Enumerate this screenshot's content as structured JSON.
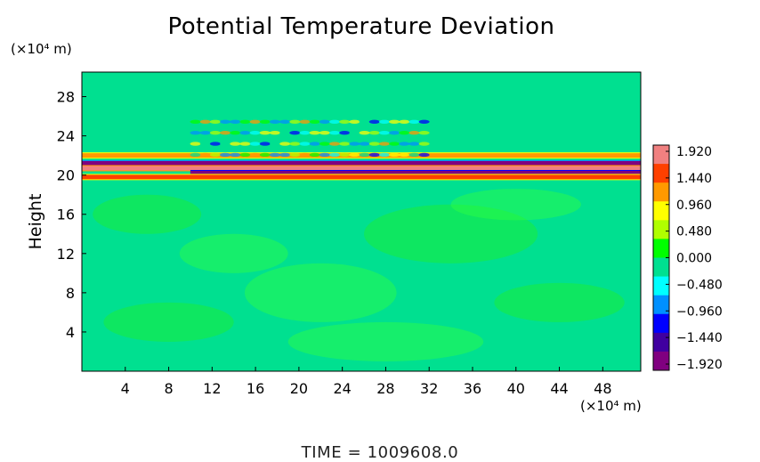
{
  "chart_data": {
    "type": "heatmap",
    "title": "Potential Temperature Deviation",
    "ylabel": "Height",
    "y_unit_label": "(×10⁴ m)",
    "x_unit_label": "(×10⁴ m)",
    "xlim": [
      0,
      51.5
    ],
    "ylim": [
      0,
      30.5
    ],
    "x_ticks": [
      4,
      8,
      12,
      16,
      20,
      24,
      28,
      32,
      36,
      40,
      44,
      48
    ],
    "y_ticks": [
      4,
      8,
      12,
      16,
      20,
      24,
      28
    ],
    "colorbar": {
      "ticks": [
        "1.920",
        "1.440",
        "0.960",
        "0.480",
        "0.000",
        "−0.480",
        "−0.960",
        "−1.440",
        "−1.920"
      ],
      "range": [
        -1.92,
        1.92
      ],
      "colors": [
        "#f08080",
        "#ff4000",
        "#ff9900",
        "#ffff00",
        "#b0ff00",
        "#00ff00",
        "#00e090",
        "#00ffff",
        "#0090ff",
        "#0000ff",
        "#4000a0",
        "#800080"
      ]
    },
    "background_value": 0.0,
    "bands": [
      {
        "y": 22.0,
        "x_range": [
          0,
          51.5
        ],
        "value": 1.2
      },
      {
        "y": 21.2,
        "x_range": [
          0,
          51.5
        ],
        "value": -1.6
      },
      {
        "y": 20.7,
        "x_range": [
          0,
          51.5
        ],
        "value": 1.9
      },
      {
        "y": 20.2,
        "x_range": [
          10,
          51.5
        ],
        "value": -1.9
      },
      {
        "y": 19.8,
        "x_range": [
          0,
          51.5
        ],
        "value": 1.5
      }
    ],
    "wave_region": {
      "x_range": [
        10,
        32
      ],
      "y_range": [
        21.5,
        26
      ],
      "value_amplitude": 1.0
    }
  },
  "footer": "TIME  =  1009608.0"
}
